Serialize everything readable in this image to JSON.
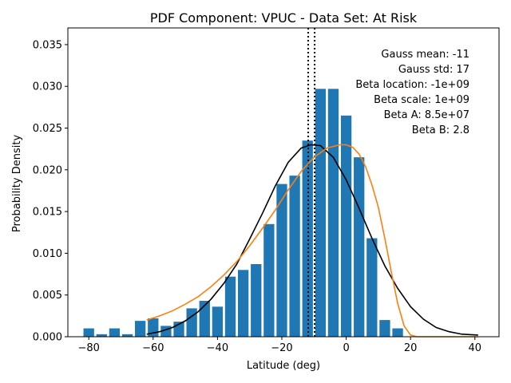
{
  "chart_data": {
    "type": "bar",
    "title": "PDF Component: VPUC - Data Set: At Risk",
    "xlabel": "Latitude (deg)",
    "ylabel": "Probability Density",
    "xlim": [
      -86.5,
      47.5
    ],
    "ylim": [
      0,
      0.037
    ],
    "xticks": [
      -80,
      -60,
      -40,
      -20,
      0,
      20,
      40
    ],
    "xtick_labels": [
      "−80",
      "−60",
      "−40",
      "−20",
      "0",
      "20",
      "40"
    ],
    "yticks": [
      0.0,
      0.005,
      0.01,
      0.015,
      0.02,
      0.025,
      0.03,
      0.035
    ],
    "ytick_labels": [
      "0.000",
      "0.005",
      "0.010",
      "0.015",
      "0.020",
      "0.025",
      "0.030",
      "0.035"
    ],
    "bar_color": "#1f77b4",
    "bar_width": 3.3,
    "bars": [
      {
        "x": -80,
        "value": 0.001
      },
      {
        "x": -76,
        "value": 0.0003
      },
      {
        "x": -72,
        "value": 0.001
      },
      {
        "x": -68,
        "value": 0.0003
      },
      {
        "x": -64,
        "value": 0.0019
      },
      {
        "x": -60,
        "value": 0.0022
      },
      {
        "x": -56,
        "value": 0.0013
      },
      {
        "x": -52,
        "value": 0.0018
      },
      {
        "x": -48,
        "value": 0.0034
      },
      {
        "x": -44,
        "value": 0.0043
      },
      {
        "x": -40,
        "value": 0.0036
      },
      {
        "x": -36,
        "value": 0.0072
      },
      {
        "x": -32,
        "value": 0.008
      },
      {
        "x": -28,
        "value": 0.0087
      },
      {
        "x": -24,
        "value": 0.0135
      },
      {
        "x": -20,
        "value": 0.0183
      },
      {
        "x": -16,
        "value": 0.0193
      },
      {
        "x": -12,
        "value": 0.0235
      },
      {
        "x": -8,
        "value": 0.0297
      },
      {
        "x": -4,
        "value": 0.0297
      },
      {
        "x": 0,
        "value": 0.0265
      },
      {
        "x": 4,
        "value": 0.0215
      },
      {
        "x": 8,
        "value": 0.0118
      },
      {
        "x": 12,
        "value": 0.002
      },
      {
        "x": 16,
        "value": 0.001
      }
    ],
    "vlines": [
      {
        "x": -11.8,
        "color": "#000000",
        "style": "dotted"
      },
      {
        "x": -9.8,
        "color": "#000000",
        "style": "dotted"
      }
    ],
    "curves": [
      {
        "name": "Gaussian",
        "color": "#000000",
        "x": [
          -62,
          -58,
          -54,
          -50,
          -46,
          -42,
          -38,
          -34,
          -30,
          -26,
          -22,
          -18,
          -14,
          -11,
          -8,
          -4,
          0,
          4,
          8,
          12,
          16,
          20,
          24,
          28,
          32,
          36,
          41
        ],
        "y": [
          0.0003,
          0.0006,
          0.0011,
          0.0019,
          0.003,
          0.0045,
          0.0064,
          0.0087,
          0.0117,
          0.0148,
          0.0181,
          0.0209,
          0.0226,
          0.023,
          0.0229,
          0.0215,
          0.0188,
          0.0154,
          0.0118,
          0.0085,
          0.0058,
          0.0036,
          0.0021,
          0.0011,
          0.0006,
          0.0003,
          0.0002
        ]
      },
      {
        "name": "Beta",
        "color": "#ff7f0e",
        "x": [
          -62,
          -58,
          -54,
          -50,
          -46,
          -42,
          -38,
          -34,
          -30,
          -26,
          -22,
          -18,
          -14,
          -10,
          -6,
          -2,
          0,
          2,
          4,
          6,
          8,
          10,
          12,
          14,
          16,
          18,
          20,
          22,
          24,
          41
        ],
        "y": [
          0.002,
          0.0025,
          0.0031,
          0.0039,
          0.0048,
          0.006,
          0.0074,
          0.009,
          0.0109,
          0.013,
          0.0152,
          0.0176,
          0.0198,
          0.0215,
          0.0226,
          0.023,
          0.023,
          0.0227,
          0.0219,
          0.0204,
          0.0182,
          0.0155,
          0.0118,
          0.0078,
          0.004,
          0.0013,
          0.0002,
          0.0,
          0.0,
          0.0
        ]
      }
    ],
    "annotations": [
      "Gauss mean: -11",
      "Gauss std: 17",
      "Beta location: -1e+09",
      "Beta scale: 1e+09",
      "Beta A: 8.5e+07",
      "Beta B: 2.8"
    ],
    "grid": false
  }
}
